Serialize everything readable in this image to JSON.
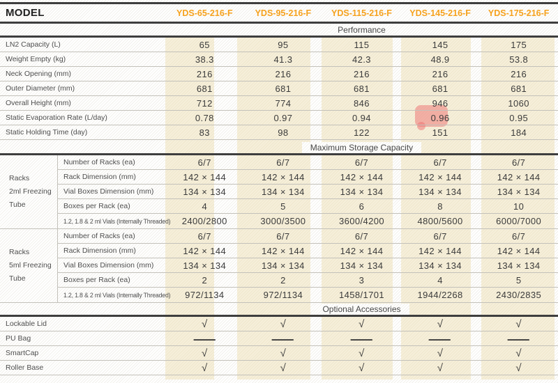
{
  "model_header": {
    "label": "MODEL",
    "models": [
      "YDS-65-216-F",
      "YDS-95-216-F",
      "YDS-115-216-F",
      "YDS-145-216-F",
      "YDS-175-216-F"
    ]
  },
  "sections": {
    "performance": {
      "title": "Performance",
      "rows": [
        {
          "label": "LN2 Capacity (L)",
          "values": [
            "65",
            "95",
            "115",
            "145",
            "175"
          ]
        },
        {
          "label": "Weight Empty (kg)",
          "values": [
            "38.3",
            "41.3",
            "42.3",
            "48.9",
            "53.8"
          ]
        },
        {
          "label": "Neck Opening (mm)",
          "values": [
            "216",
            "216",
            "216",
            "216",
            "216"
          ]
        },
        {
          "label": "Outer Diameter (mm)",
          "values": [
            "681",
            "681",
            "681",
            "681",
            "681"
          ]
        },
        {
          "label": "Overall Height (mm)",
          "values": [
            "712",
            "774",
            "846",
            "946",
            "1060"
          ]
        },
        {
          "label": "Static Evaporation Rate (L/day)",
          "values": [
            "0.78",
            "0.97",
            "0.94",
            "0.96",
            "0.95"
          ],
          "highlighted_column": 3
        },
        {
          "label": "Static Holding Time (day)",
          "values": [
            "83",
            "98",
            "122",
            "151",
            "184"
          ]
        }
      ]
    },
    "storage": {
      "title": "Maximum Storage Capacity",
      "groups": [
        {
          "label_line1": "Racks",
          "label_line2": "2ml Freezing Tube",
          "rows": [
            {
              "label": "Number of Racks (ea)",
              "values": [
                "6/7",
                "6/7",
                "6/7",
                "6/7",
                "6/7"
              ]
            },
            {
              "label": "Rack Dimension (mm)",
              "values": [
                "142 × 144",
                "142 × 144",
                "142 × 144",
                "142 × 144",
                "142 × 144"
              ]
            },
            {
              "label": "Vial Boxes Dimension (mm)",
              "values": [
                "134 × 134",
                "134 × 134",
                "134 × 134",
                "134 × 134",
                "134 × 134"
              ]
            },
            {
              "label": "Boxes per Rack (ea)",
              "values": [
                "4",
                "5",
                "6",
                "8",
                "10"
              ]
            },
            {
              "label": "1.2, 1.8 & 2 ml Vials (Internally Threaded)",
              "values": [
                "2400/2800",
                "3000/3500",
                "3600/4200",
                "4800/5600",
                "6000/7000"
              ]
            }
          ]
        },
        {
          "label_line1": "Racks",
          "label_line2": "5ml Freezing Tube",
          "rows": [
            {
              "label": "Number of Racks (ea)",
              "values": [
                "6/7",
                "6/7",
                "6/7",
                "6/7",
                "6/7"
              ]
            },
            {
              "label": "Rack Dimension (mm)",
              "values": [
                "142 × 144",
                "142 × 144",
                "142 × 144",
                "142 × 144",
                "142 × 144"
              ]
            },
            {
              "label": "Vial Boxes Dimension (mm)",
              "values": [
                "134 × 134",
                "134 × 134",
                "134 × 134",
                "134 × 134",
                "134 × 134"
              ]
            },
            {
              "label": "Boxes per Rack (ea)",
              "values": [
                "2",
                "2",
                "3",
                "4",
                "5"
              ]
            },
            {
              "label": "1.2, 1.8 & 2 ml Vials (Internally Threaded)",
              "values": [
                "972/1134",
                "972/1134",
                "1458/1701",
                "1944/2268",
                "2430/2835"
              ]
            }
          ]
        }
      ]
    },
    "accessories": {
      "title": "Optional Accessories",
      "rows": [
        {
          "label": "Lockable Lid",
          "values": [
            "√",
            "√",
            "√",
            "√",
            "√"
          ]
        },
        {
          "label": "PU Bag",
          "values": [
            "—",
            "—",
            "—",
            "—",
            "—"
          ]
        },
        {
          "label": "SmartCap",
          "values": [
            "√",
            "√",
            "√",
            "√",
            "√"
          ]
        },
        {
          "label": "Roller Base",
          "values": [
            "√",
            "√",
            "√",
            "√",
            "√"
          ]
        }
      ]
    }
  },
  "colors": {
    "model_accent": "#f6a21e",
    "highlight": "#ee7070",
    "band_beige": "#f6efda"
  }
}
